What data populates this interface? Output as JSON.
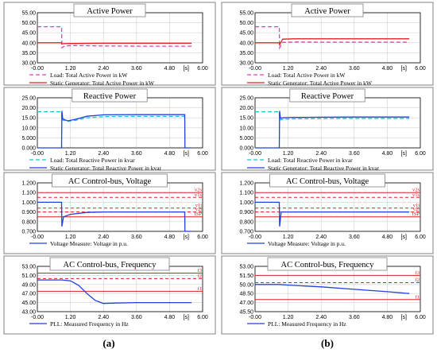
{
  "figure": {
    "columns": [
      {
        "label": "(a)",
        "panels": [
          {
            "title": "Active Power"
          },
          {
            "title": "Reactive Power"
          },
          {
            "title": "AC Control-bus, Voltage"
          },
          {
            "title": "AC Control-bus, Frequency"
          }
        ]
      },
      {
        "label": "(b)",
        "panels": [
          {
            "title": "Active Power"
          },
          {
            "title": "Reactive Power"
          },
          {
            "title": "AC Control-bus, Voltage"
          },
          {
            "title": "AC Control-bus, Frequency"
          }
        ]
      }
    ]
  },
  "chart_data": [
    {
      "type": "line",
      "column": "(a)",
      "title": "Active Power",
      "xlim": [
        -0.0,
        6.0
      ],
      "ylim": [
        30.0,
        55.0
      ],
      "x_ticks": [
        "-0.00",
        "1.20",
        "2.40",
        "3.60",
        "4.80",
        "6.00"
      ],
      "x_unit": "[s]",
      "y_ticks": [
        "30.00",
        "35.00",
        "40.00",
        "45.00",
        "50.00",
        "55.00"
      ],
      "legend": [
        "Load: Total Active Power in kW",
        "Static Generator: Total Active Power in kW"
      ],
      "series": [
        {
          "name": "Load: Total Active Power in kW",
          "color": "#e040b0",
          "dash": "5,3",
          "points": [
            [
              0,
              48
            ],
            [
              0.88,
              48
            ],
            [
              0.89,
              37.5
            ],
            [
              1.0,
              38.5
            ],
            [
              1.4,
              38.6
            ],
            [
              2.4,
              38.4
            ],
            [
              3.6,
              38.3
            ],
            [
              4.8,
              38.3
            ],
            [
              5.6,
              38.3
            ]
          ]
        },
        {
          "name": "Static Generator: Total Active Power in kW",
          "color": "#e02020",
          "points": [
            [
              0,
              40
            ],
            [
              0.88,
              40
            ],
            [
              0.89,
              39.5
            ],
            [
              1.0,
              39.6
            ],
            [
              2.4,
              39.8
            ],
            [
              3.6,
              39.8
            ],
            [
              4.8,
              39.8
            ],
            [
              5.6,
              39.8
            ]
          ]
        }
      ]
    },
    {
      "type": "line",
      "column": "(b)",
      "title": "Active Power",
      "xlim": [
        -0.0,
        6.0
      ],
      "ylim": [
        30.0,
        55.0
      ],
      "x_ticks": [
        "-0.00",
        "1.20",
        "2.40",
        "3.60",
        "4.80",
        "6.00"
      ],
      "x_unit": "[s]",
      "y_ticks": [
        "30.00",
        "35.00",
        "40.00",
        "45.00",
        "50.00",
        "55.00"
      ],
      "legend": [
        "Load: Total Active Power in kW",
        "Static Generator: Total Active Power in kW"
      ],
      "series": [
        {
          "name": "Load: Total Active Power in kW",
          "color": "#e040b0",
          "dash": "5,3",
          "points": [
            [
              0,
              48
            ],
            [
              0.88,
              48
            ],
            [
              0.89,
              37.5
            ],
            [
              1.0,
              40.2
            ],
            [
              1.4,
              40.4
            ],
            [
              2.4,
              40.3
            ],
            [
              3.6,
              40.3
            ],
            [
              4.8,
              40.3
            ],
            [
              5.6,
              40.3
            ]
          ]
        },
        {
          "name": "Static Generator: Total Active Power in kW",
          "color": "#e02020",
          "points": [
            [
              0,
              40
            ],
            [
              0.88,
              40
            ],
            [
              0.89,
              39
            ],
            [
              1.0,
              41.8
            ],
            [
              1.4,
              42
            ],
            [
              2.4,
              42
            ],
            [
              3.6,
              42
            ],
            [
              4.8,
              42
            ],
            [
              5.6,
              42
            ]
          ]
        }
      ]
    },
    {
      "type": "line",
      "column": "(a)",
      "title": "Reactive Power",
      "xlim": [
        -0.0,
        6.0
      ],
      "ylim": [
        0.0,
        25.0
      ],
      "x_ticks": [
        "-0.00",
        "1.20",
        "2.40",
        "3.60",
        "4.80",
        "6.00"
      ],
      "x_unit": "[s]",
      "y_ticks": [
        "0.000",
        "5.000",
        "10.00",
        "15.00",
        "20.00",
        "25.00"
      ],
      "legend": [
        "Load: Total Reactive Power in kvar",
        "Static Generator: Total Reactive Power in kvar"
      ],
      "series": [
        {
          "name": "Load: Total Reactive Power in kvar",
          "color": "#20c0d0",
          "dash": "5,3",
          "points": [
            [
              0,
              18
            ],
            [
              0.88,
              18
            ],
            [
              0.89,
              14
            ],
            [
              1.1,
              13.2
            ],
            [
              1.4,
              13.8
            ],
            [
              1.8,
              15
            ],
            [
              2.4,
              15.6
            ],
            [
              3.6,
              15.7
            ],
            [
              4.8,
              15.7
            ],
            [
              5.35,
              15.7
            ]
          ]
        },
        {
          "name": "Static Generator: Total Reactive Power in kvar",
          "color": "#2040e0",
          "points": [
            [
              0,
              0
            ],
            [
              0.88,
              0
            ],
            [
              0.89,
              18.5
            ],
            [
              0.92,
              14.5
            ],
            [
              1.1,
              13.5
            ],
            [
              1.4,
              14.3
            ],
            [
              1.8,
              15.8
            ],
            [
              2.4,
              16.5
            ],
            [
              3.6,
              16.6
            ],
            [
              4.8,
              16.6
            ],
            [
              5.35,
              16.6
            ],
            [
              5.36,
              0
            ],
            [
              5.6,
              0
            ]
          ]
        }
      ]
    },
    {
      "type": "line",
      "column": "(b)",
      "title": "Reactive Power",
      "xlim": [
        -0.0,
        6.0
      ],
      "ylim": [
        0.0,
        25.0
      ],
      "x_ticks": [
        "-0.00",
        "1.20",
        "2.40",
        "3.60",
        "4.80",
        "6.00"
      ],
      "x_unit": "[s]",
      "y_ticks": [
        "0.000",
        "5.000",
        "10.00",
        "15.00",
        "20.00",
        "25.00"
      ],
      "legend": [
        "Load: Total Reactive Power in kvar",
        "Static Generator: Total Reactive Power in kvar"
      ],
      "series": [
        {
          "name": "Load: Total Reactive Power in kvar",
          "color": "#20c0d0",
          "dash": "5,3",
          "points": [
            [
              0,
              18
            ],
            [
              0.88,
              18
            ],
            [
              0.89,
              14
            ],
            [
              1.0,
              14.2
            ],
            [
              1.4,
              14.5
            ],
            [
              2.4,
              14.6
            ],
            [
              3.6,
              14.7
            ],
            [
              4.8,
              14.7
            ],
            [
              5.6,
              14.7
            ]
          ]
        },
        {
          "name": "Static Generator: Total Reactive Power in kvar",
          "color": "#2040e0",
          "points": [
            [
              0,
              0
            ],
            [
              0.88,
              0
            ],
            [
              0.89,
              18.5
            ],
            [
              0.92,
              14.8
            ],
            [
              1.0,
              15
            ],
            [
              1.4,
              15.2
            ],
            [
              2.4,
              15.3
            ],
            [
              3.6,
              15.4
            ],
            [
              4.8,
              15.4
            ],
            [
              5.6,
              15.4
            ]
          ]
        }
      ]
    },
    {
      "type": "line",
      "column": "(a)",
      "title": "AC Control-bus, Voltage",
      "xlim": [
        -0.0,
        6.0
      ],
      "ylim": [
        0.7,
        1.2
      ],
      "x_ticks": [
        "-0.00",
        "1.20",
        "2.40",
        "3.60",
        "4.80",
        "6.00"
      ],
      "x_unit": "[s]",
      "y_ticks": [
        "0.700",
        "0.800",
        "0.900",
        "1.000",
        "1.100",
        "1.200"
      ],
      "legend": [
        "Voltage Measure: Voltage in p.u."
      ],
      "thresholds": [
        {
          "label": "v2s",
          "value": 1.1,
          "color": "#e02020",
          "dash": ""
        },
        {
          "label": "v1s",
          "value": 1.05,
          "color": "#e02020",
          "dash": "4,3"
        },
        {
          "label": "v1i",
          "value": 0.94,
          "color": "#e02020",
          "dash": "4,3"
        },
        {
          "label": "v2i",
          "value": 0.9,
          "color": "#e02020",
          "dash": "4,3"
        },
        {
          "label": "ISP",
          "value": 0.85,
          "color": "#e02020",
          "dash": ""
        }
      ],
      "series": [
        {
          "name": "Voltage Measure: Voltage in p.u.",
          "color": "#2040e0",
          "points": [
            [
              0,
              1.0
            ],
            [
              0.88,
              1.0
            ],
            [
              0.89,
              0.75
            ],
            [
              0.95,
              0.85
            ],
            [
              1.2,
              0.875
            ],
            [
              1.8,
              0.895
            ],
            [
              2.4,
              0.9
            ],
            [
              3.6,
              0.9
            ],
            [
              4.8,
              0.9
            ],
            [
              5.35,
              0.9
            ],
            [
              5.36,
              0.7
            ],
            [
              5.6,
              0.7
            ]
          ]
        }
      ]
    },
    {
      "type": "line",
      "column": "(b)",
      "title": "AC Control-bus, Voltage",
      "xlim": [
        -0.0,
        6.0
      ],
      "ylim": [
        0.7,
        1.2
      ],
      "x_ticks": [
        "-0.00",
        "1.20",
        "2.40",
        "3.60",
        "4.80",
        "6.00"
      ],
      "x_unit": "[s]",
      "y_ticks": [
        "0.700",
        "0.800",
        "0.900",
        "1.000",
        "1.100",
        "1.200"
      ],
      "legend": [
        "Voltage Measure: Voltage in p.u."
      ],
      "thresholds": [
        {
          "label": "v2s",
          "value": 1.1,
          "color": "#e02020",
          "dash": ""
        },
        {
          "label": "v1s",
          "value": 1.05,
          "color": "#e02020",
          "dash": "4,3"
        },
        {
          "label": "v1i",
          "value": 0.94,
          "color": "#e02020",
          "dash": "4,3"
        },
        {
          "label": "v2i",
          "value": 0.9,
          "color": "#e02020",
          "dash": "4,3"
        },
        {
          "label": "ISP",
          "value": 0.85,
          "color": "#e02020",
          "dash": ""
        }
      ],
      "series": [
        {
          "name": "Voltage Measure: Voltage in p.u.",
          "color": "#2040e0",
          "points": [
            [
              0,
              1.0
            ],
            [
              0.88,
              1.0
            ],
            [
              0.89,
              0.75
            ],
            [
              0.95,
              0.9
            ],
            [
              1.1,
              0.9
            ],
            [
              2.4,
              0.9
            ],
            [
              3.6,
              0.9
            ],
            [
              4.8,
              0.9
            ],
            [
              5.6,
              0.9
            ]
          ]
        }
      ]
    },
    {
      "type": "line",
      "column": "(a)",
      "title": "AC Control-bus, Frequency",
      "xlim": [
        -0.0,
        6.0
      ],
      "ylim": [
        43.0,
        53.0
      ],
      "x_ticks": [
        "-0.00",
        "1.20",
        "2.40",
        "3.60",
        "4.80",
        "6.00"
      ],
      "x_unit": "[s]",
      "y_ticks": [
        "43.00",
        "45.00",
        "47.00",
        "49.00",
        "51.00",
        "53.00"
      ],
      "legend": [
        "PLL: Measured Frequency in Hz"
      ],
      "thresholds": [
        {
          "label": "f3",
          "value": 51.5,
          "color": "#e02020",
          "dash": ""
        },
        {
          "label": "f2",
          "value": 50.3,
          "color": "#e02020",
          "dash": "4,3"
        },
        {
          "label": "f1",
          "value": 47.5,
          "color": "#e02020",
          "dash": ""
        }
      ],
      "series": [
        {
          "name": "PLL: Measured Frequency in Hz",
          "color": "#2040e0",
          "points": [
            [
              0,
              50
            ],
            [
              0.9,
              50
            ],
            [
              1.2,
              49.8
            ],
            [
              1.5,
              48.8
            ],
            [
              1.8,
              47
            ],
            [
              2.1,
              45.5
            ],
            [
              2.4,
              44.8
            ],
            [
              2.8,
              44.9
            ],
            [
              3.6,
              45
            ],
            [
              4.8,
              45
            ],
            [
              5.6,
              45
            ]
          ]
        }
      ]
    },
    {
      "type": "line",
      "column": "(b)",
      "title": "AC Control-bus, Frequency",
      "xlim": [
        -0.0,
        6.0
      ],
      "ylim": [
        45.5,
        53.0
      ],
      "x_ticks": [
        "-0.00",
        "1.20",
        "2.40",
        "3.60",
        "4.80",
        "6.00"
      ],
      "x_unit": "[s]",
      "y_ticks": [
        "45.50",
        "47.00",
        "48.50",
        "50.00",
        "51.50",
        "53.00"
      ],
      "legend": [
        "PLL: Measured Frequency in Hz"
      ],
      "thresholds": [
        {
          "label": "f3",
          "value": 51.5,
          "color": "#e02020",
          "dash": ""
        },
        {
          "label": "f2",
          "value": 50.3,
          "color": "#e02020",
          "dash": "4,3"
        },
        {
          "label": "f1",
          "value": 47.5,
          "color": "#e02020",
          "dash": ""
        }
      ],
      "series": [
        {
          "name": "PLL: Measured Frequency in Hz",
          "color": "#2040e0",
          "points": [
            [
              0,
              50
            ],
            [
              0.9,
              50
            ],
            [
              1.2,
              49.9
            ],
            [
              2.4,
              49.6
            ],
            [
              3.6,
              49.2
            ],
            [
              4.8,
              48.8
            ],
            [
              5.6,
              48.5
            ]
          ]
        }
      ]
    }
  ]
}
